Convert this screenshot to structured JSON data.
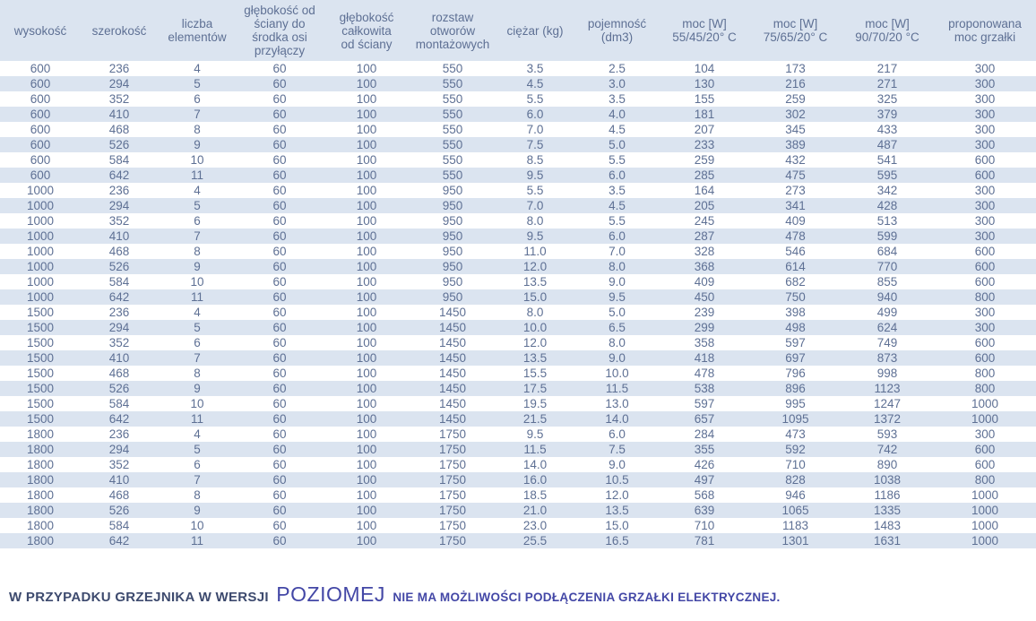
{
  "table": {
    "columns": [
      "wysokość",
      "szerokość",
      "liczba\nelementów",
      "głębokość od\nściany do\nśrodka osi\nprzyłączy",
      "głębokość\ncałkowita\nod ściany",
      "rozstaw\notworów\nmontażowych",
      "ciężar (kg)",
      "pojemność\n(dm3)",
      "moc [W]\n55/45/20° C",
      "moc [W]\n75/65/20° C",
      "moc [W]\n90/70/20 °C",
      "proponowana\nmoc grzałki"
    ],
    "rows": [
      [
        "600",
        "236",
        "4",
        "60",
        "100",
        "550",
        "3.5",
        "2.5",
        "104",
        "173",
        "217",
        "300"
      ],
      [
        "600",
        "294",
        "5",
        "60",
        "100",
        "550",
        "4.5",
        "3.0",
        "130",
        "216",
        "271",
        "300"
      ],
      [
        "600",
        "352",
        "6",
        "60",
        "100",
        "550",
        "5.5",
        "3.5",
        "155",
        "259",
        "325",
        "300"
      ],
      [
        "600",
        "410",
        "7",
        "60",
        "100",
        "550",
        "6.0",
        "4.0",
        "181",
        "302",
        "379",
        "300"
      ],
      [
        "600",
        "468",
        "8",
        "60",
        "100",
        "550",
        "7.0",
        "4.5",
        "207",
        "345",
        "433",
        "300"
      ],
      [
        "600",
        "526",
        "9",
        "60",
        "100",
        "550",
        "7.5",
        "5.0",
        "233",
        "389",
        "487",
        "300"
      ],
      [
        "600",
        "584",
        "10",
        "60",
        "100",
        "550",
        "8.5",
        "5.5",
        "259",
        "432",
        "541",
        "600"
      ],
      [
        "600",
        "642",
        "11",
        "60",
        "100",
        "550",
        "9.5",
        "6.0",
        "285",
        "475",
        "595",
        "600"
      ],
      [
        "1000",
        "236",
        "4",
        "60",
        "100",
        "950",
        "5.5",
        "3.5",
        "164",
        "273",
        "342",
        "300"
      ],
      [
        "1000",
        "294",
        "5",
        "60",
        "100",
        "950",
        "7.0",
        "4.5",
        "205",
        "341",
        "428",
        "300"
      ],
      [
        "1000",
        "352",
        "6",
        "60",
        "100",
        "950",
        "8.0",
        "5.5",
        "245",
        "409",
        "513",
        "300"
      ],
      [
        "1000",
        "410",
        "7",
        "60",
        "100",
        "950",
        "9.5",
        "6.0",
        "287",
        "478",
        "599",
        "300"
      ],
      [
        "1000",
        "468",
        "8",
        "60",
        "100",
        "950",
        "11.0",
        "7.0",
        "328",
        "546",
        "684",
        "600"
      ],
      [
        "1000",
        "526",
        "9",
        "60",
        "100",
        "950",
        "12.0",
        "8.0",
        "368",
        "614",
        "770",
        "600"
      ],
      [
        "1000",
        "584",
        "10",
        "60",
        "100",
        "950",
        "13.5",
        "9.0",
        "409",
        "682",
        "855",
        "600"
      ],
      [
        "1000",
        "642",
        "11",
        "60",
        "100",
        "950",
        "15.0",
        "9.5",
        "450",
        "750",
        "940",
        "800"
      ],
      [
        "1500",
        "236",
        "4",
        "60",
        "100",
        "1450",
        "8.0",
        "5.0",
        "239",
        "398",
        "499",
        "300"
      ],
      [
        "1500",
        "294",
        "5",
        "60",
        "100",
        "1450",
        "10.0",
        "6.5",
        "299",
        "498",
        "624",
        "300"
      ],
      [
        "1500",
        "352",
        "6",
        "60",
        "100",
        "1450",
        "12.0",
        "8.0",
        "358",
        "597",
        "749",
        "600"
      ],
      [
        "1500",
        "410",
        "7",
        "60",
        "100",
        "1450",
        "13.5",
        "9.0",
        "418",
        "697",
        "873",
        "600"
      ],
      [
        "1500",
        "468",
        "8",
        "60",
        "100",
        "1450",
        "15.5",
        "10.0",
        "478",
        "796",
        "998",
        "800"
      ],
      [
        "1500",
        "526",
        "9",
        "60",
        "100",
        "1450",
        "17.5",
        "11.5",
        "538",
        "896",
        "1123",
        "800"
      ],
      [
        "1500",
        "584",
        "10",
        "60",
        "100",
        "1450",
        "19.5",
        "13.0",
        "597",
        "995",
        "1247",
        "1000"
      ],
      [
        "1500",
        "642",
        "11",
        "60",
        "100",
        "1450",
        "21.5",
        "14.0",
        "657",
        "1095",
        "1372",
        "1000"
      ],
      [
        "1800",
        "236",
        "4",
        "60",
        "100",
        "1750",
        "9.5",
        "6.0",
        "284",
        "473",
        "593",
        "300"
      ],
      [
        "1800",
        "294",
        "5",
        "60",
        "100",
        "1750",
        "11.5",
        "7.5",
        "355",
        "592",
        "742",
        "600"
      ],
      [
        "1800",
        "352",
        "6",
        "60",
        "100",
        "1750",
        "14.0",
        "9.0",
        "426",
        "710",
        "890",
        "600"
      ],
      [
        "1800",
        "410",
        "7",
        "60",
        "100",
        "1750",
        "16.0",
        "10.5",
        "497",
        "828",
        "1038",
        "800"
      ],
      [
        "1800",
        "468",
        "8",
        "60",
        "100",
        "1750",
        "18.5",
        "12.0",
        "568",
        "946",
        "1186",
        "1000"
      ],
      [
        "1800",
        "526",
        "9",
        "60",
        "100",
        "1750",
        "21.0",
        "13.5",
        "639",
        "1065",
        "1335",
        "1000"
      ],
      [
        "1800",
        "584",
        "10",
        "60",
        "100",
        "1750",
        "23.0",
        "15.0",
        "710",
        "1183",
        "1483",
        "1000"
      ],
      [
        "1800",
        "642",
        "11",
        "60",
        "100",
        "1750",
        "25.5",
        "16.5",
        "781",
        "1301",
        "1631",
        "1000"
      ]
    ]
  },
  "footer": {
    "part1": "W PRZYPADKU GRZEJNIKA W WERSJI",
    "highlight": "POZIOMEJ",
    "part2": "NIE MA MOŻLIWOŚCI PODŁĄCZENIA GRZAŁKI ELEKTRYCZNEJ."
  },
  "colors": {
    "stripe": "#dbe4f0",
    "table_text": "#5e7094",
    "footer_navy": "#3d4a6e",
    "footer_indigo": "#4347a6",
    "background": "#ffffff"
  }
}
